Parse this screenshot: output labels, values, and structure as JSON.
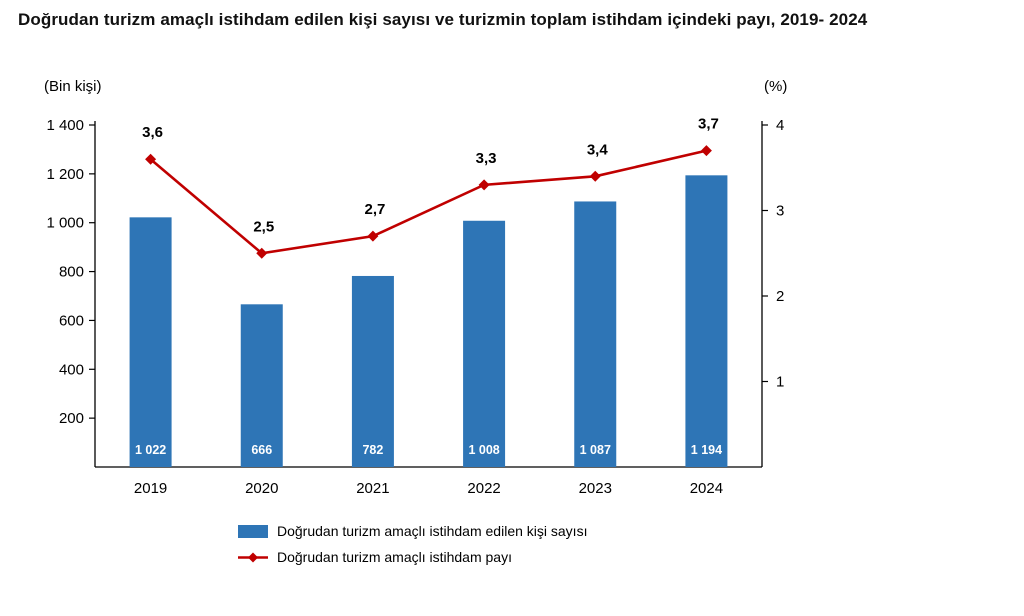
{
  "page": {
    "title": "Doğrudan turizm amaçlı istihdam edilen kişi sayısı ve turizmin toplam istihdam içindeki payı, 2019- 2024"
  },
  "chart_data": {
    "type": "bar+line combo",
    "categories": [
      "2019",
      "2020",
      "2021",
      "2022",
      "2023",
      "2024"
    ],
    "series": [
      {
        "name": "Doğrudan turizm amaçlı istihdam edilen kişi sayısı",
        "type": "bar",
        "axis": "left",
        "color": "#2e75b6",
        "values": [
          1022,
          666,
          782,
          1008,
          1087,
          1194
        ],
        "labels": [
          "1 022",
          "666",
          "782",
          "1 008",
          "1 087",
          "1 194"
        ],
        "label_color": "#ffffff"
      },
      {
        "name": "Doğrudan turizm amaçlı istihdam payı",
        "type": "line",
        "axis": "right",
        "color": "#c00000",
        "marker": "diamond",
        "values": [
          3.6,
          2.5,
          2.7,
          3.3,
          3.4,
          3.7
        ],
        "labels": [
          "3,6",
          "2,5",
          "2,7",
          "3,3",
          "3,4",
          "3,7"
        ],
        "label_color": "#000000"
      }
    ],
    "left_axis": {
      "label": "(Bin kişi)",
      "min": 0,
      "max": 1400,
      "ticks": [
        200,
        400,
        600,
        800,
        1000,
        1200,
        1400
      ],
      "tick_labels": [
        "200",
        "400",
        "600",
        "800",
        "1 000",
        "1 200",
        "1 400"
      ]
    },
    "right_axis": {
      "label": "(%)",
      "min": 0,
      "max": 4,
      "ticks": [
        1,
        2,
        3,
        4
      ],
      "tick_labels": [
        "1",
        "2",
        "3",
        "4"
      ]
    },
    "legend_position": "bottom",
    "grid": false
  }
}
